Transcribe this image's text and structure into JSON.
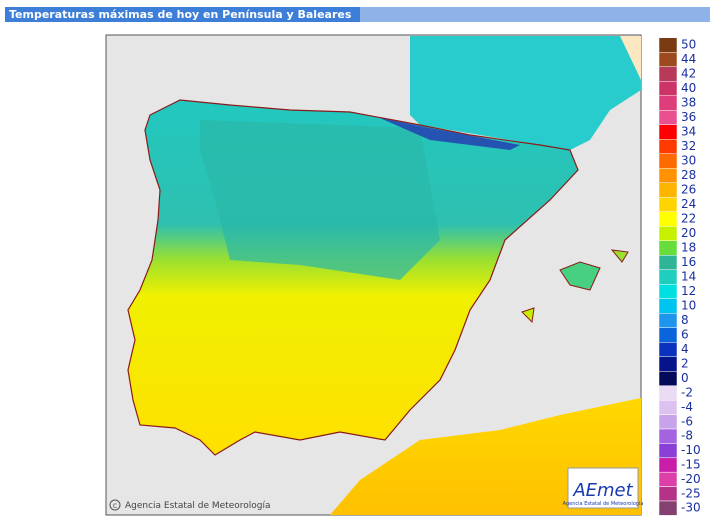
{
  "header": {
    "title": "Temperaturas máximas de hoy en Península y Baleares"
  },
  "legend": {
    "upper": [
      {
        "label": 50,
        "color": "#7a3a12"
      },
      {
        "label": 44,
        "color": "#9c4a1e"
      },
      {
        "label": 42,
        "color": "#b83a5a"
      },
      {
        "label": 40,
        "color": "#cc3366"
      },
      {
        "label": 38,
        "color": "#dd3d7a"
      },
      {
        "label": 36,
        "color": "#e9508e"
      },
      {
        "label": 34,
        "color": "#ff0000"
      },
      {
        "label": 32,
        "color": "#ff3a00"
      },
      {
        "label": 30,
        "color": "#ff6a00"
      },
      {
        "label": 28,
        "color": "#ff9200"
      },
      {
        "label": 26,
        "color": "#ffb400"
      },
      {
        "label": 24,
        "color": "#ffd400"
      },
      {
        "label": 22,
        "color": "#ffff00"
      },
      {
        "label": 20,
        "color": "#c6f000"
      },
      {
        "label": 18,
        "color": "#66dd3a"
      },
      {
        "label": 16,
        "color": "#2eb596"
      },
      {
        "label": 14,
        "color": "#1ecfc0"
      },
      {
        "label": 12,
        "color": "#00e0e0"
      },
      {
        "label": 10,
        "color": "#00c4f0"
      },
      {
        "label": 8,
        "color": "#1e96ee"
      },
      {
        "label": 6,
        "color": "#0a64dc"
      },
      {
        "label": 4,
        "color": "#0a32be"
      },
      {
        "label": 2,
        "color": "#06148c"
      },
      {
        "label": 0,
        "color": "#040a5a"
      }
    ],
    "lower": [
      {
        "label": -2,
        "color": "#eadaf4"
      },
      {
        "label": -4,
        "color": "#dcc2f0"
      },
      {
        "label": -6,
        "color": "#c8a2ea"
      },
      {
        "label": -8,
        "color": "#a464e2"
      },
      {
        "label": -10,
        "color": "#8a3fd6"
      },
      {
        "label": -15,
        "color": "#c81eaa"
      },
      {
        "label": -20,
        "color": "#dc40a8"
      },
      {
        "label": -25,
        "color": "#b43288"
      },
      {
        "label": -30,
        "color": "#84406e"
      }
    ]
  },
  "map": {
    "copyright": "Agencia Estatal de Meteorología"
  },
  "logo": {
    "brand": "AEmet",
    "subtitle": "Agencia Estatal de Meteorología"
  }
}
